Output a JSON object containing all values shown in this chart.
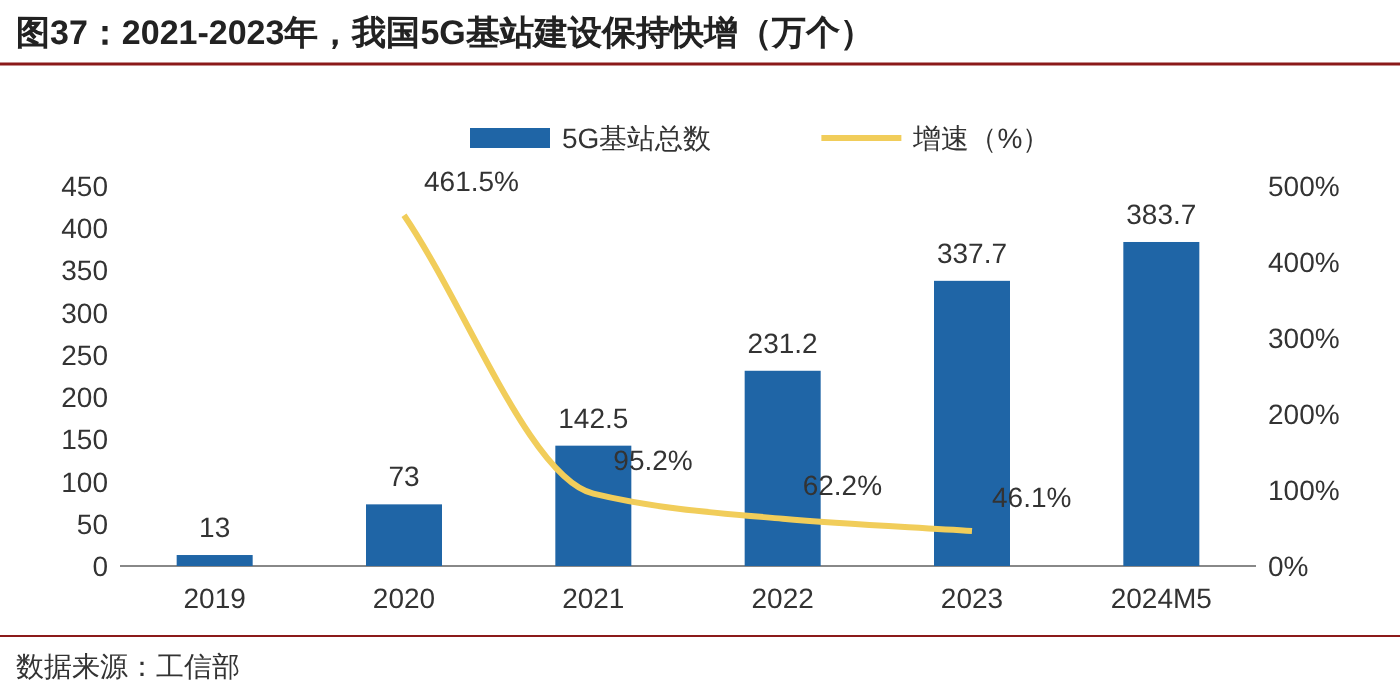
{
  "chart_data": {
    "type": "bar",
    "title": "图37：2021-2023年，我国5G基站建设保持快增（万个）",
    "categories": [
      "2019",
      "2020",
      "2021",
      "2022",
      "2023",
      "2024M5"
    ],
    "series": [
      {
        "name": "5G基站总数",
        "color": "#1f65a6",
        "values": [
          13,
          73,
          142.5,
          231.2,
          337.7,
          383.7
        ]
      },
      {
        "name": "增速（%）",
        "type": "line",
        "axis": "y2",
        "color": "#f1cd5a",
        "values": [
          null,
          461.5,
          95.2,
          62.2,
          46.1,
          null
        ],
        "value_labels": [
          null,
          "461.5%",
          "95.2%",
          "62.2%",
          "46.1%",
          null
        ]
      }
    ],
    "ylim": [
      0,
      450
    ],
    "yticks": [
      0,
      50,
      100,
      150,
      200,
      250,
      300,
      350,
      400,
      450
    ],
    "y2lim": [
      0,
      500
    ],
    "y2ticks": [
      {
        "value": 0,
        "label": "0%"
      },
      {
        "value": 100,
        "label": "100%"
      },
      {
        "value": 200,
        "label": "200%"
      },
      {
        "value": 300,
        "label": "300%"
      },
      {
        "value": 400,
        "label": "400%"
      },
      {
        "value": 500,
        "label": "500%"
      }
    ],
    "data_labels": true,
    "legend": "top",
    "grid": false,
    "marker": "none",
    "line_style": "solid",
    "annotations": [
      "数据来源：工信部"
    ]
  }
}
